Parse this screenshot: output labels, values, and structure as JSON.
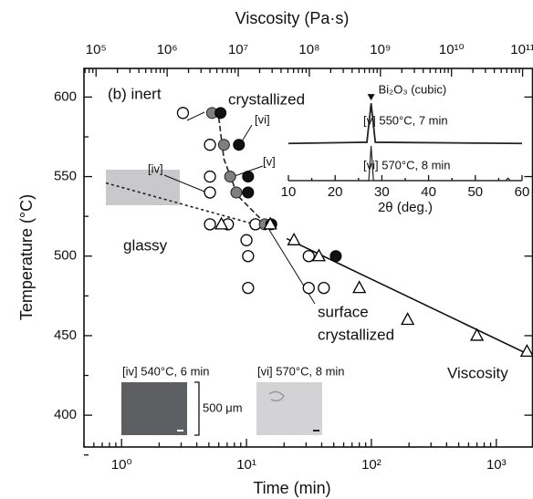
{
  "chart_data": [
    {
      "type": "scatter",
      "xlabel": "Time (min)",
      "ylabel": "Temperature (°C)",
      "x2label": "Viscosity (Pa·s)",
      "xscale": "log",
      "x2scale": "log",
      "xlim": [
        0.5,
        1950
      ],
      "ylim": [
        380,
        618
      ],
      "x2lim": [
        67600,
        138000000000
      ],
      "xticks": [
        {
          "value": 1,
          "label": "10⁰"
        },
        {
          "value": 10,
          "label": "10¹"
        },
        {
          "value": 100,
          "label": "10²"
        },
        {
          "value": 1000,
          "label": "10³"
        }
      ],
      "x2ticks": [
        {
          "value": 100000,
          "label": "10⁵"
        },
        {
          "value": 1000000,
          "label": "10⁶"
        },
        {
          "value": 10000000,
          "label": "10⁷"
        },
        {
          "value": 100000000,
          "label": "10⁸"
        },
        {
          "value": 1000000000,
          "label": "10⁹"
        },
        {
          "value": 10000000000,
          "label": "10¹⁰"
        },
        {
          "value": 100000000000,
          "label": "10¹¹"
        }
      ],
      "yticks": [
        400,
        450,
        500,
        550,
        600
      ],
      "series": [
        {
          "marker": "open-circle",
          "color": "#000000",
          "x": [
            3.1,
            5.1,
            5.1,
            5.1,
            5.1,
            7.1,
            10,
            10.3,
            10.3,
            11.8,
            31.5,
            31.5,
            41.6
          ],
          "values": [
            590,
            570,
            550,
            540,
            520,
            520,
            510,
            500,
            480,
            520,
            500,
            480,
            480
          ]
        },
        {
          "marker": "gray-circle",
          "color": "#7f7f7f",
          "x": [
            5.3,
            6.6,
            7.4,
            8.3,
            14
          ],
          "values": [
            590,
            570,
            550,
            540,
            520
          ]
        },
        {
          "marker": "black-circle",
          "color": "#111111",
          "x": [
            6.2,
            8.7,
            10.3,
            10.3,
            15.8,
            51.9
          ],
          "values": [
            590,
            570,
            550,
            540,
            520,
            500
          ]
        },
        {
          "marker": "open-triangle",
          "color": "#000000",
          "x": [
            6.3,
            15.5,
            24,
            38,
            80,
            195,
            700,
            1760
          ],
          "values": [
            520,
            520,
            510,
            500,
            480,
            460,
            450,
            440
          ]
        },
        {
          "marker": "dotted-line",
          "color": "#222222",
          "x": [
            0.75,
            12.9
          ],
          "values": [
            546,
            519
          ]
        },
        {
          "marker": "dashed-line",
          "color": "#222222",
          "x": [
            6.0,
            6.6,
            8.5,
            15.2
          ],
          "values": [
            587,
            561,
            538,
            518
          ]
        },
        {
          "marker": "solid-line",
          "color": "#111111",
          "x": [
            21,
            1950
          ],
          "values": [
            511,
            437
          ]
        }
      ],
      "annotations": [
        "(b) inert",
        "crystallized",
        "[vi]",
        "[iv]",
        "[v]",
        "glassy",
        "surface",
        "crystallized",
        "Viscosity",
        "[iv] 540°C, 6 min",
        "[vi] 570°C, 8 min",
        "500 μm"
      ]
    },
    {
      "type": "line",
      "xlabel": "2θ (deg.)",
      "xlim": [
        10,
        60
      ],
      "xticks": [
        10,
        20,
        30,
        40,
        50,
        60
      ],
      "ylim": [
        0,
        14
      ],
      "peak_label": "Bi₂O₃ (cubic)",
      "series": [
        {
          "name": "[v] 550°C, 7 min",
          "color": "#222222",
          "x": [
            10,
            26.8,
            27.7,
            28.6,
            60
          ],
          "values": [
            6,
            6.2,
            12.5,
            6.2,
            6
          ]
        },
        {
          "name": "[vi] 570°C, 8 min",
          "color": "#222222",
          "x": [
            10,
            27.2,
            27.7,
            28.2,
            56.5,
            57,
            57.5,
            60
          ],
          "values": [
            0,
            0,
            5.6,
            0,
            0,
            0.4,
            0,
            0
          ]
        }
      ]
    }
  ]
}
